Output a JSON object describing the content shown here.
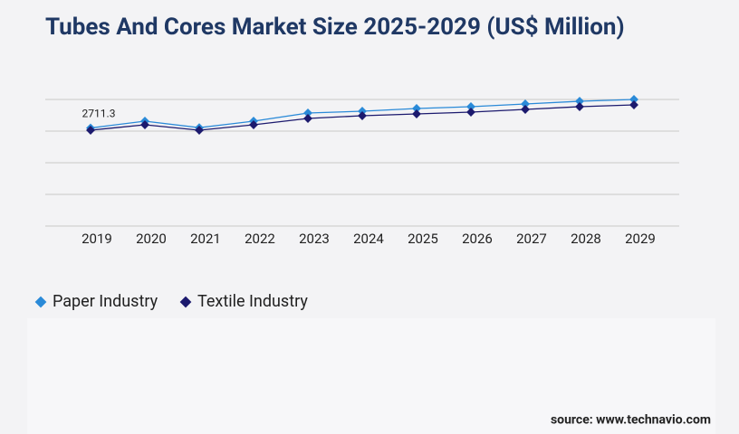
{
  "chart_data": {
    "type": "line",
    "title": "Tubes And Cores Market Size 2025-2029 (US$ Million)",
    "categories": [
      "2019",
      "2020",
      "2021",
      "2022",
      "2023",
      "2024",
      "2025",
      "2026",
      "2027",
      "2028",
      "2029"
    ],
    "series": [
      {
        "name": "Paper Industry",
        "color": "#2a8ad8",
        "values": [
          2711.3,
          2900,
          2720,
          2900,
          3125,
          3175,
          3250,
          3300,
          3375,
          3450,
          3500
        ]
      },
      {
        "name": "Textile Industry",
        "color": "#1c1a6e",
        "values": [
          2650,
          2800,
          2650,
          2800,
          2975,
          3050,
          3100,
          3150,
          3225,
          3300,
          3350
        ]
      }
    ],
    "ylim": [
      0,
      3500
    ],
    "yticks": [
      0,
      875,
      1750,
      2625,
      3500
    ],
    "grid": true,
    "source": "source: www.technavio.com"
  }
}
